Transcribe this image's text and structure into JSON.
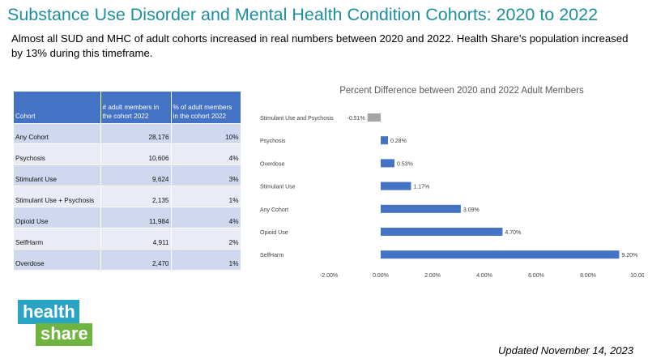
{
  "header": {
    "title": "Substance Use Disorder and Mental Health Condition Cohorts: 2020 to 2022",
    "subtitle": "Almost all SUD and MHC of adult cohorts increased in real numbers between 2020 and 2022.  Health Share’s population increased by 13% during this timeframe."
  },
  "table": {
    "headers": [
      "Cohort",
      "# adult members in the cohort 2022",
      "% of adult members in the cohort 2022"
    ],
    "rows": [
      [
        "Any Cohort",
        "28,176",
        "10%"
      ],
      [
        "Psychosis",
        "10,606",
        "4%"
      ],
      [
        "Stimulant Use",
        "9,624",
        "3%"
      ],
      [
        "Stimulant Use + Psychosis",
        "2,135",
        "1%"
      ],
      [
        "Opioid Use",
        "11,984",
        "4%"
      ],
      [
        "SelfHarm",
        "4,911",
        "2%"
      ],
      [
        "Overdose",
        "2,470",
        "1%"
      ]
    ]
  },
  "chart_data": {
    "type": "bar",
    "orientation": "horizontal",
    "title": "Percent Difference between 2020 and 2022 Adult Members",
    "categories": [
      "Stimulant Use and Psychosis",
      "Psychosis",
      "Overdose",
      "Stimulant Use",
      "Any Cohort",
      "Opioid Use",
      "SelfHarm"
    ],
    "values": [
      -0.51,
      0.28,
      0.53,
      1.17,
      3.09,
      4.7,
      9.2
    ],
    "data_labels": [
      "-0.51%",
      "0.28%",
      "0.53%",
      "1.17%",
      "3.09%",
      "4.70%",
      "9.20%"
    ],
    "xlim": [
      -2,
      10
    ],
    "xticks": [
      -2,
      0,
      2,
      4,
      6,
      8,
      10
    ],
    "xtick_labels": [
      "-2.00%",
      "0.00%",
      "2.00%",
      "4.00%",
      "6.00%",
      "8.00%",
      "10.00%"
    ],
    "colors": {
      "positive": "#4472c4",
      "negative": "#a5a5a5"
    },
    "grid": false
  },
  "logo": {
    "line1": "health",
    "line2": "share",
    "colors": [
      "#2aa4c5",
      "#6fb43f"
    ]
  },
  "footer": {
    "updated": "Updated November 14, 2023"
  }
}
